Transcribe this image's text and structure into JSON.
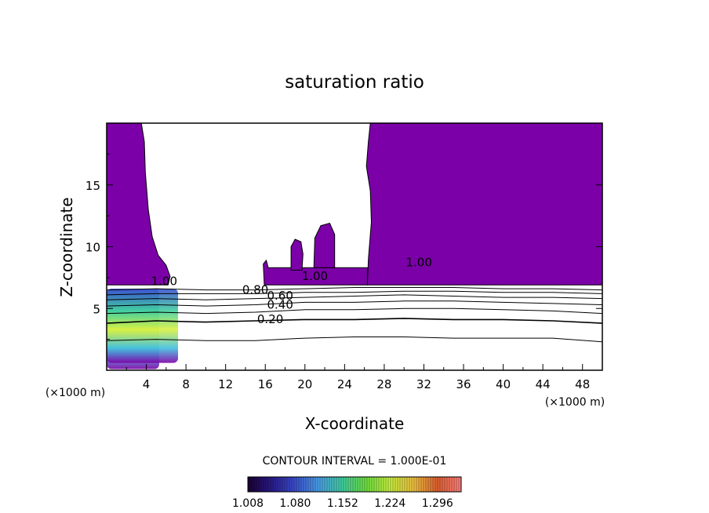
{
  "chart_data": {
    "type": "contour",
    "title": "saturation ratio",
    "xlabel": "X-coordinate",
    "ylabel": "Z-coordinate",
    "x_unit_label": "(×1000 m)",
    "z_unit_label": "(×1000 m)",
    "xlim": [
      0,
      50
    ],
    "ylim": [
      0,
      20
    ],
    "x_ticks": [
      "4",
      "8",
      "12",
      "16",
      "20",
      "24",
      "28",
      "32",
      "36",
      "40",
      "44",
      "48"
    ],
    "y_ticks": [
      "5",
      "10",
      "15"
    ],
    "contour_interval_text": "CONTOUR INTERVAL = 1.000E-01",
    "colorbar": {
      "labels": [
        "1.008",
        "1.080",
        "1.152",
        "1.224",
        "1.296"
      ],
      "min": 1.008,
      "max": 1.332,
      "colors": [
        "#1a0033",
        "#2a1a8c",
        "#3a4fd0",
        "#4aa0e8",
        "#40d0a0",
        "#70e040",
        "#c8f040",
        "#f0c040",
        "#e06030",
        "#ff8080"
      ]
    },
    "contour_lines": [
      {
        "label": "0.20",
        "x": 16.5,
        "z": 3.8
      },
      {
        "label": "0.40",
        "x": 17.5,
        "z": 5.0
      },
      {
        "label": "0.60",
        "x": 17.5,
        "z": 5.7
      },
      {
        "label": "0.80",
        "x": 15.0,
        "z": 6.2
      },
      {
        "label": "1.00",
        "x": 5.8,
        "z": 6.9
      },
      {
        "label": "1.00",
        "x": 21.0,
        "z": 7.3
      },
      {
        "label": "1.00",
        "x": 31.5,
        "z": 8.4
      }
    ],
    "fill_color": "#7b00a8",
    "levels": [
      {
        "x": [
          0,
          5,
          10,
          15,
          20,
          25,
          30,
          35,
          40,
          45,
          50
        ],
        "z": [
          2.4,
          2.5,
          2.4,
          2.4,
          2.6,
          2.7,
          2.7,
          2.6,
          2.6,
          2.6,
          2.3
        ]
      },
      {
        "x": [
          0,
          5,
          10,
          15,
          20,
          25,
          30,
          35,
          40,
          45,
          50
        ],
        "z": [
          3.8,
          4.0,
          3.9,
          4.0,
          4.1,
          4.1,
          4.2,
          4.1,
          4.1,
          4.0,
          3.8
        ]
      },
      {
        "x": [
          0,
          5,
          10,
          15,
          20,
          25,
          30,
          35,
          40,
          45,
          50
        ],
        "z": [
          4.6,
          4.7,
          4.6,
          4.7,
          4.9,
          4.9,
          5.0,
          5.0,
          4.9,
          4.8,
          4.6
        ]
      },
      {
        "x": [
          0,
          5,
          10,
          15,
          20,
          25,
          30,
          35,
          40,
          45,
          50
        ],
        "z": [
          5.2,
          5.3,
          5.2,
          5.3,
          5.5,
          5.5,
          5.6,
          5.6,
          5.5,
          5.4,
          5.3
        ]
      },
      {
        "x": [
          0,
          5,
          10,
          15,
          20,
          25,
          30,
          35,
          40,
          45,
          50
        ],
        "z": [
          5.7,
          5.8,
          5.7,
          5.8,
          5.9,
          6.0,
          6.1,
          6.0,
          5.9,
          5.9,
          5.8
        ]
      },
      {
        "x": [
          0,
          5,
          10,
          15,
          20,
          25,
          30,
          35,
          40,
          45,
          50
        ],
        "z": [
          6.1,
          6.2,
          6.2,
          6.2,
          6.3,
          6.3,
          6.4,
          6.4,
          6.3,
          6.3,
          6.2
        ]
      },
      {
        "x": [
          0,
          5,
          10,
          15,
          20,
          25,
          30,
          35,
          40,
          45,
          50
        ],
        "z": [
          6.5,
          6.6,
          6.5,
          6.5,
          6.6,
          6.7,
          6.7,
          6.7,
          6.6,
          6.6,
          6.5
        ]
      }
    ]
  }
}
